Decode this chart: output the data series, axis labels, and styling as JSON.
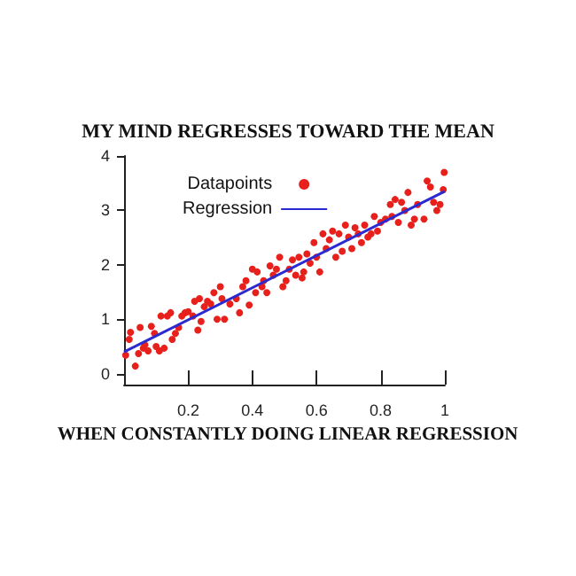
{
  "chart_data": {
    "type": "scatter",
    "title": "MY MIND REGRESSES TOWARD THE MEAN",
    "annotations": [
      "WHEN CONSTANTLY DOING LINEAR REGRESSION"
    ],
    "xlim": [
      0,
      1
    ],
    "xticks": [
      0.2,
      0.4,
      0.6,
      0.8,
      1
    ],
    "ylim": [
      -0.2,
      4
    ],
    "yticks": [
      0,
      1,
      2,
      3,
      4
    ],
    "grid": false,
    "legend": "top left",
    "marker": "circle",
    "series": [
      {
        "name": "Datapoints",
        "color": "#e8201c",
        "x": [
          0.005,
          0.016,
          0.02,
          0.035,
          0.045,
          0.05,
          0.06,
          0.065,
          0.075,
          0.085,
          0.095,
          0.1,
          0.11,
          0.115,
          0.125,
          0.135,
          0.145,
          0.15,
          0.16,
          0.17,
          0.18,
          0.19,
          0.2,
          0.215,
          0.22,
          0.23,
          0.235,
          0.24,
          0.25,
          0.26,
          0.27,
          0.28,
          0.29,
          0.3,
          0.305,
          0.313,
          0.33,
          0.35,
          0.36,
          0.37,
          0.38,
          0.39,
          0.4,
          0.41,
          0.415,
          0.43,
          0.435,
          0.445,
          0.455,
          0.465,
          0.475,
          0.485,
          0.495,
          0.505,
          0.515,
          0.525,
          0.535,
          0.545,
          0.555,
          0.56,
          0.57,
          0.58,
          0.592,
          0.6,
          0.61,
          0.62,
          0.63,
          0.64,
          0.65,
          0.66,
          0.67,
          0.68,
          0.69,
          0.7,
          0.71,
          0.72,
          0.73,
          0.74,
          0.75,
          0.76,
          0.77,
          0.78,
          0.79,
          0.8,
          0.815,
          0.83,
          0.835,
          0.845,
          0.855,
          0.865,
          0.875,
          0.885,
          0.895,
          0.905,
          0.915,
          0.935,
          0.945,
          0.955,
          0.965,
          0.975,
          0.985,
          0.995,
          0.998
        ],
        "values": [
          0.34,
          0.63,
          0.76,
          0.14,
          0.37,
          0.85,
          0.47,
          0.53,
          0.42,
          0.87,
          0.74,
          0.5,
          0.42,
          1.06,
          0.47,
          1.06,
          1.12,
          0.63,
          0.74,
          0.85,
          1.06,
          1.12,
          1.14,
          1.06,
          1.33,
          0.8,
          1.38,
          0.96,
          1.23,
          1.33,
          1.28,
          1.49,
          1.0,
          1.6,
          1.38,
          1.0,
          1.28,
          1.38,
          1.12,
          1.6,
          1.71,
          1.26,
          1.92,
          1.49,
          1.87,
          1.6,
          1.71,
          1.49,
          1.98,
          1.81,
          1.92,
          2.14,
          1.6,
          1.71,
          1.92,
          2.09,
          1.81,
          2.14,
          1.76,
          1.87,
          2.2,
          2.03,
          2.41,
          2.14,
          1.87,
          2.57,
          2.3,
          2.46,
          2.62,
          2.14,
          2.57,
          2.25,
          2.73,
          2.51,
          2.3,
          2.68,
          2.57,
          2.41,
          2.73,
          2.51,
          2.57,
          2.89,
          2.62,
          2.78,
          2.84,
          3.11,
          2.89,
          3.2,
          2.78,
          3.15,
          3.0,
          3.33,
          2.73,
          2.84,
          3.11,
          2.84,
          3.54,
          3.43,
          3.15,
          3.0,
          3.11,
          3.38,
          3.7
        ]
      },
      {
        "name": "Regression",
        "type": "line",
        "color": "#2a2ad0",
        "marker": "none",
        "x": [
          0,
          1
        ],
        "values": [
          0.4,
          3.35
        ]
      }
    ]
  }
}
